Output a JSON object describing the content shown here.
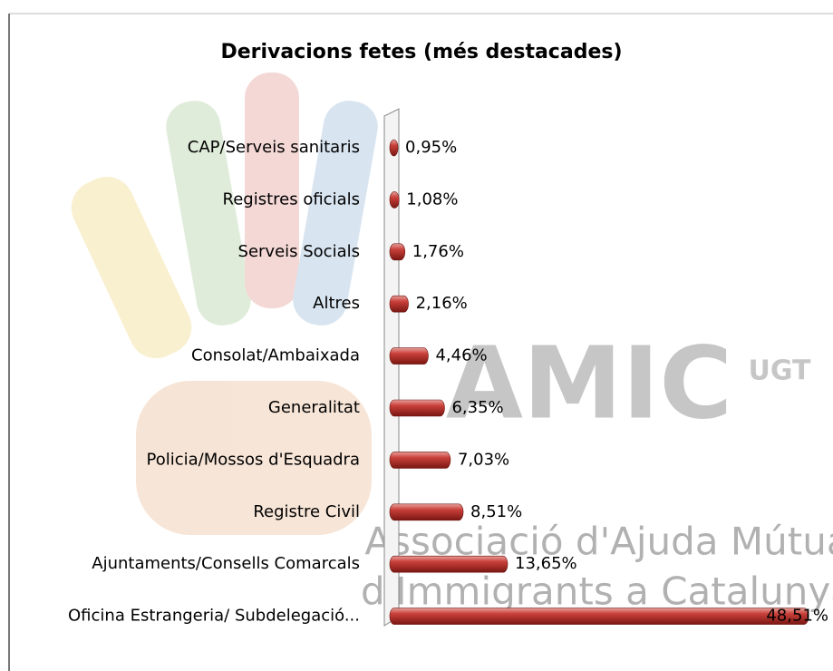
{
  "chart_data": {
    "type": "bar",
    "orientation": "horizontal",
    "title": "Derivacions fetes (més destacades)",
    "categories": [
      "CAP/Serveis sanitaris",
      "Registres oficials",
      "Serveis Socials",
      "Altres",
      "Consolat/Ambaixada",
      "Generalitat",
      "Policia/Mossos d'Esquadra",
      "Registre Civil",
      "Ajuntaments/Consells Comarcals",
      "Oficina Estrangeria/ Subdelegació..."
    ],
    "values": [
      0.95,
      1.08,
      1.76,
      2.16,
      4.46,
      6.35,
      7.03,
      8.51,
      13.65,
      48.51
    ],
    "value_labels": [
      "0,95%",
      "1,08%",
      "1,76%",
      "2,16%",
      "4,46%",
      "6,35%",
      "7,03%",
      "8,51%",
      "13,65%",
      "48,51%"
    ],
    "color": "#c0392b"
  },
  "watermark": {
    "logo": "AMIC",
    "badge": "UGT",
    "lines": [
      "Associació d'Ajuda Mútua",
      "d'Immigrants a Catalunya"
    ]
  }
}
